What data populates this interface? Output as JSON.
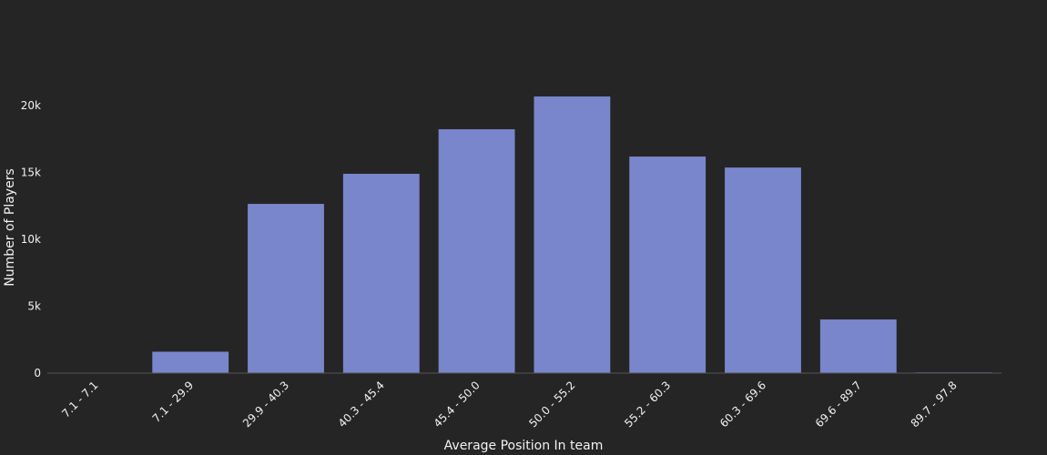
{
  "chart_data": {
    "type": "bar",
    "categories": [
      "7.1 - 7.1",
      "7.1 - 29.9",
      "29.9 - 40.3",
      "40.3 - 45.4",
      "45.4 - 50.0",
      "50.0 - 55.2",
      "55.2 - 60.3",
      "60.3 - 69.6",
      "69.6 - 89.7",
      "89.7 - 97.8"
    ],
    "values": [
      10,
      1600,
      12650,
      14900,
      18230,
      20680,
      16190,
      15370,
      4010,
      50
    ],
    "color": "#7986cb",
    "x_label": "Average Position In team",
    "y_label": "Number of Players",
    "ylim": [
      0,
      21770
    ],
    "yticks": [
      0,
      {
        "value": 5000,
        "label": "5k"
      },
      {
        "value": 10000,
        "label": "10k"
      },
      {
        "value": 15000,
        "label": "15k"
      },
      {
        "value": 20000,
        "label": "20k"
      }
    ]
  }
}
